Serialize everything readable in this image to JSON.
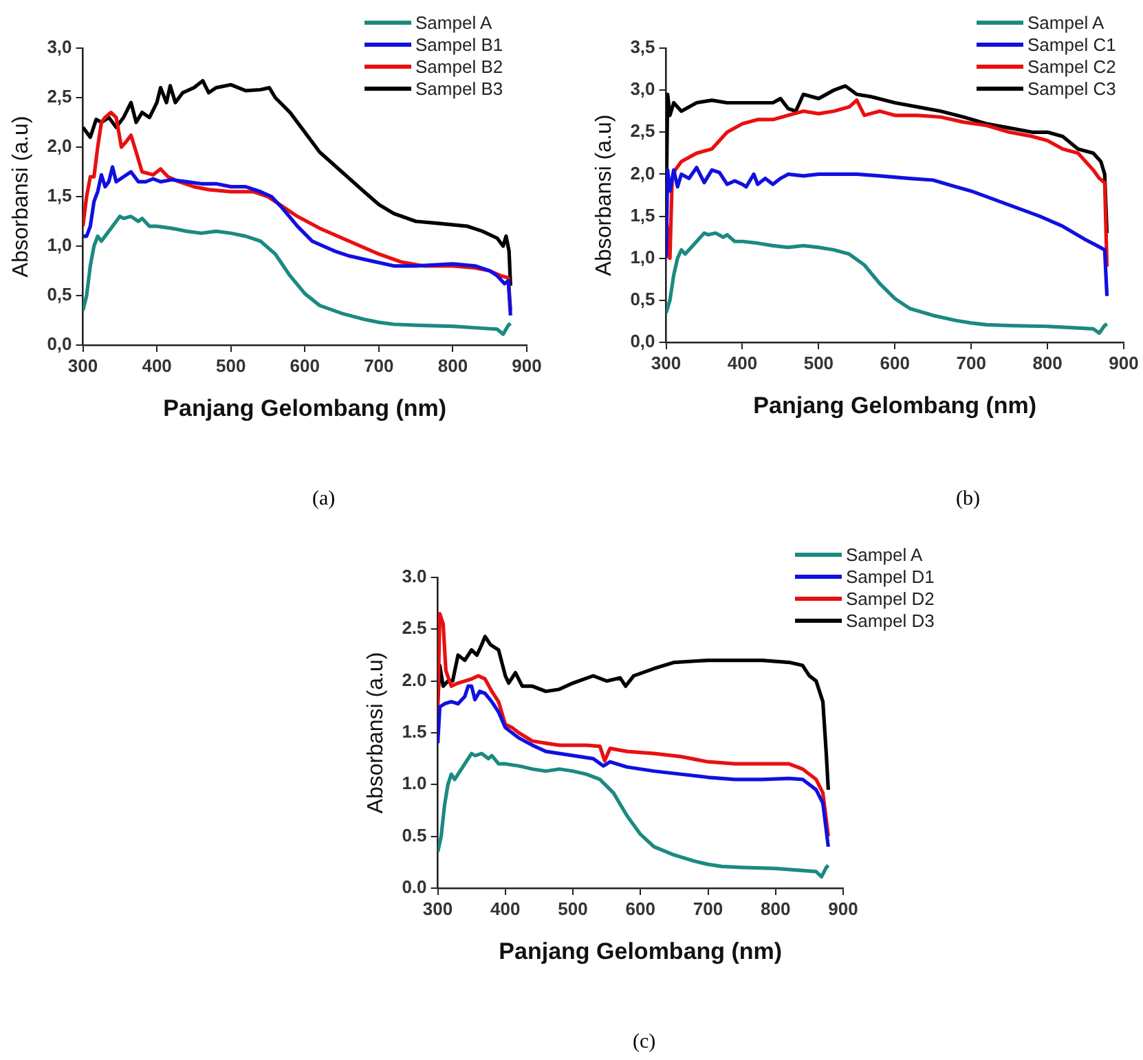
{
  "chart_data": [
    {
      "type": "line",
      "xlabel": "Panjang Gelombang (nm)",
      "ylabel": "Absorbansi (a.u)",
      "annotations": [
        "(a)"
      ],
      "legend": "top right",
      "grid": false,
      "marker": "none",
      "line_style": "solid",
      "xlim": [
        300,
        900
      ],
      "xticks": [
        300,
        400,
        500,
        600,
        700,
        800,
        900
      ],
      "ylim": [
        0,
        3
      ],
      "yticks": [
        {
          "value": 0,
          "label": "0,0"
        },
        {
          "value": 0.5,
          "label": "0,5"
        },
        {
          "value": 1,
          "label": "1,0"
        },
        {
          "value": 1.5,
          "label": "1,5"
        },
        {
          "value": 2,
          "label": "2,0"
        },
        {
          "value": 2.5,
          "label": "2,5"
        },
        {
          "value": 3,
          "label": "3,0"
        }
      ],
      "series": [
        {
          "name": "Sampel A",
          "color": "#1b8a80",
          "x": [
            300,
            305,
            310,
            315,
            320,
            325,
            330,
            340,
            350,
            355,
            365,
            375,
            380,
            390,
            400,
            420,
            440,
            460,
            480,
            500,
            520,
            540,
            560,
            580,
            600,
            620,
            650,
            680,
            700,
            720,
            750,
            800,
            840,
            860,
            868,
            875,
            878
          ],
          "values": [
            0.35,
            0.5,
            0.8,
            1.0,
            1.1,
            1.05,
            1.1,
            1.2,
            1.3,
            1.28,
            1.3,
            1.25,
            1.28,
            1.2,
            1.2,
            1.18,
            1.15,
            1.13,
            1.15,
            1.13,
            1.1,
            1.05,
            0.92,
            0.7,
            0.52,
            0.4,
            0.32,
            0.26,
            0.23,
            0.21,
            0.2,
            0.19,
            0.17,
            0.16,
            0.11,
            0.2,
            0.22
          ]
        },
        {
          "name": "Sampel B1",
          "color": "#1010e0",
          "x": [
            300,
            305,
            310,
            315,
            320,
            325,
            330,
            335,
            340,
            345,
            355,
            365,
            375,
            385,
            395,
            405,
            420,
            440,
            460,
            480,
            500,
            520,
            540,
            555,
            570,
            590,
            610,
            640,
            660,
            690,
            720,
            750,
            800,
            830,
            850,
            860,
            870,
            875,
            878
          ],
          "values": [
            1.1,
            1.1,
            1.2,
            1.45,
            1.55,
            1.72,
            1.6,
            1.65,
            1.8,
            1.65,
            1.7,
            1.75,
            1.65,
            1.65,
            1.68,
            1.65,
            1.67,
            1.65,
            1.63,
            1.63,
            1.6,
            1.6,
            1.55,
            1.5,
            1.38,
            1.2,
            1.05,
            0.95,
            0.9,
            0.85,
            0.8,
            0.8,
            0.82,
            0.8,
            0.75,
            0.7,
            0.62,
            0.65,
            0.3
          ]
        },
        {
          "name": "Sampel B2",
          "color": "#e81010",
          "x": [
            300,
            305,
            310,
            315,
            320,
            325,
            330,
            338,
            345,
            352,
            358,
            365,
            372,
            380,
            395,
            405,
            415,
            430,
            450,
            470,
            500,
            530,
            550,
            570,
            590,
            620,
            660,
            700,
            730,
            760,
            800,
            830,
            850,
            865,
            875,
            878
          ],
          "values": [
            1.2,
            1.5,
            1.7,
            1.7,
            2.0,
            2.25,
            2.3,
            2.35,
            2.3,
            2.0,
            2.05,
            2.12,
            1.95,
            1.75,
            1.72,
            1.78,
            1.7,
            1.65,
            1.6,
            1.57,
            1.55,
            1.55,
            1.5,
            1.4,
            1.3,
            1.18,
            1.05,
            0.92,
            0.84,
            0.8,
            0.8,
            0.78,
            0.75,
            0.7,
            0.68,
            0.35
          ]
        },
        {
          "name": "Sampel B3",
          "color": "#000000",
          "x": [
            300,
            305,
            310,
            318,
            325,
            335,
            345,
            355,
            365,
            372,
            380,
            390,
            400,
            405,
            413,
            418,
            425,
            435,
            450,
            462,
            470,
            480,
            500,
            520,
            540,
            552,
            560,
            580,
            600,
            620,
            650,
            680,
            700,
            720,
            750,
            780,
            820,
            840,
            860,
            868,
            872,
            876,
            878
          ],
          "values": [
            2.2,
            2.15,
            2.1,
            2.28,
            2.25,
            2.3,
            2.2,
            2.3,
            2.45,
            2.25,
            2.35,
            2.3,
            2.45,
            2.6,
            2.45,
            2.62,
            2.45,
            2.55,
            2.6,
            2.67,
            2.55,
            2.6,
            2.63,
            2.57,
            2.58,
            2.6,
            2.5,
            2.35,
            2.15,
            1.95,
            1.75,
            1.55,
            1.42,
            1.33,
            1.25,
            1.23,
            1.2,
            1.15,
            1.08,
            1.0,
            1.1,
            0.95,
            0.6
          ]
        }
      ]
    },
    {
      "type": "line",
      "xlabel": "Panjang Gelombang (nm)",
      "ylabel": "Absorbansi (a.u)",
      "annotations": [
        "(b)"
      ],
      "legend": "top right",
      "grid": false,
      "marker": "none",
      "line_style": "solid",
      "xlim": [
        300,
        900
      ],
      "xticks": [
        300,
        400,
        500,
        600,
        700,
        800,
        900
      ],
      "ylim": [
        0,
        3.5
      ],
      "yticks": [
        {
          "value": 0,
          "label": "0,0"
        },
        {
          "value": 0.5,
          "label": "0,5"
        },
        {
          "value": 1,
          "label": "1,0"
        },
        {
          "value": 1.5,
          "label": "1,5"
        },
        {
          "value": 2,
          "label": "2,0"
        },
        {
          "value": 2.5,
          "label": "2,5"
        },
        {
          "value": 3,
          "label": "3,0"
        },
        {
          "value": 3.5,
          "label": "3,5"
        }
      ],
      "series": [
        {
          "name": "Sampel A",
          "color": "#1b8a80",
          "x": [
            300,
            305,
            310,
            315,
            320,
            325,
            330,
            340,
            350,
            355,
            365,
            375,
            380,
            390,
            400,
            420,
            440,
            460,
            480,
            500,
            520,
            540,
            560,
            580,
            600,
            620,
            650,
            680,
            700,
            720,
            750,
            800,
            840,
            860,
            868,
            875,
            878
          ],
          "values": [
            0.35,
            0.5,
            0.8,
            1.0,
            1.1,
            1.05,
            1.1,
            1.2,
            1.3,
            1.28,
            1.3,
            1.25,
            1.28,
            1.2,
            1.2,
            1.18,
            1.15,
            1.13,
            1.15,
            1.13,
            1.1,
            1.05,
            0.92,
            0.7,
            0.52,
            0.4,
            0.32,
            0.26,
            0.23,
            0.21,
            0.2,
            0.19,
            0.17,
            0.16,
            0.11,
            0.2,
            0.22
          ]
        },
        {
          "name": "Sampel C1",
          "color": "#1010e0",
          "x": [
            300,
            302,
            305,
            310,
            315,
            320,
            330,
            340,
            350,
            360,
            370,
            380,
            390,
            400,
            405,
            415,
            420,
            430,
            440,
            450,
            460,
            480,
            500,
            520,
            550,
            580,
            620,
            650,
            680,
            700,
            730,
            760,
            790,
            820,
            850,
            865,
            875,
            878
          ],
          "values": [
            1.0,
            2.05,
            1.8,
            2.05,
            1.85,
            2.0,
            1.95,
            2.08,
            1.9,
            2.05,
            2.02,
            1.88,
            1.92,
            1.88,
            1.85,
            2.0,
            1.88,
            1.95,
            1.88,
            1.95,
            2.0,
            1.98,
            2.0,
            2.0,
            2.0,
            1.98,
            1.95,
            1.93,
            1.85,
            1.8,
            1.7,
            1.6,
            1.5,
            1.38,
            1.22,
            1.15,
            1.1,
            0.55
          ]
        },
        {
          "name": "Sampel C2",
          "color": "#e81010",
          "x": [
            300,
            305,
            308,
            312,
            320,
            340,
            360,
            380,
            400,
            420,
            440,
            460,
            480,
            500,
            520,
            540,
            550,
            560,
            580,
            600,
            630,
            660,
            690,
            720,
            750,
            780,
            800,
            820,
            840,
            860,
            868,
            875,
            878
          ],
          "values": [
            1.5,
            1.0,
            1.95,
            2.05,
            2.15,
            2.25,
            2.3,
            2.5,
            2.6,
            2.65,
            2.65,
            2.7,
            2.75,
            2.72,
            2.75,
            2.8,
            2.88,
            2.7,
            2.75,
            2.7,
            2.7,
            2.68,
            2.62,
            2.58,
            2.5,
            2.45,
            2.4,
            2.3,
            2.25,
            2.05,
            1.95,
            1.9,
            0.9
          ]
        },
        {
          "name": "Sampel C3",
          "color": "#000000",
          "x": [
            300,
            302,
            305,
            310,
            320,
            340,
            360,
            380,
            400,
            420,
            440,
            450,
            460,
            470,
            480,
            500,
            520,
            535,
            550,
            570,
            600,
            630,
            660,
            690,
            720,
            750,
            780,
            800,
            820,
            840,
            860,
            870,
            875,
            878
          ],
          "values": [
            1.5,
            2.95,
            2.7,
            2.85,
            2.75,
            2.85,
            2.88,
            2.85,
            2.85,
            2.85,
            2.85,
            2.9,
            2.78,
            2.75,
            2.95,
            2.9,
            3.0,
            3.05,
            2.95,
            2.92,
            2.85,
            2.8,
            2.75,
            2.68,
            2.6,
            2.55,
            2.5,
            2.5,
            2.45,
            2.3,
            2.25,
            2.15,
            2.0,
            1.3
          ]
        }
      ]
    },
    {
      "type": "line",
      "xlabel": "Panjang Gelombang (nm)",
      "ylabel": "Absorbansi (a.u)",
      "annotations": [
        "(c)"
      ],
      "legend": "top right",
      "grid": false,
      "marker": "none",
      "line_style": "solid",
      "xlim": [
        300,
        900
      ],
      "xticks": [
        300,
        400,
        500,
        600,
        700,
        800,
        900
      ],
      "ylim": [
        0,
        3
      ],
      "yticks": [
        {
          "value": 0,
          "label": "0.0"
        },
        {
          "value": 0.5,
          "label": "0.5"
        },
        {
          "value": 1,
          "label": "1.0"
        },
        {
          "value": 1.5,
          "label": "1.5"
        },
        {
          "value": 2,
          "label": "2.0"
        },
        {
          "value": 2.5,
          "label": "2.5"
        },
        {
          "value": 3,
          "label": "3.0"
        }
      ],
      "series": [
        {
          "name": "Sampel A",
          "color": "#1b8a80",
          "x": [
            300,
            305,
            310,
            315,
            320,
            325,
            330,
            340,
            350,
            355,
            365,
            375,
            380,
            390,
            400,
            420,
            440,
            460,
            480,
            500,
            520,
            540,
            560,
            580,
            600,
            620,
            650,
            680,
            700,
            720,
            750,
            800,
            840,
            860,
            868,
            875,
            878
          ],
          "values": [
            0.35,
            0.5,
            0.8,
            1.0,
            1.1,
            1.05,
            1.1,
            1.2,
            1.3,
            1.28,
            1.3,
            1.25,
            1.28,
            1.2,
            1.2,
            1.18,
            1.15,
            1.13,
            1.15,
            1.13,
            1.1,
            1.05,
            0.92,
            0.7,
            0.52,
            0.4,
            0.32,
            0.26,
            0.23,
            0.21,
            0.2,
            0.19,
            0.17,
            0.16,
            0.11,
            0.2,
            0.22
          ]
        },
        {
          "name": "Sampel D1",
          "color": "#1010e0",
          "x": [
            300,
            303,
            310,
            320,
            330,
            340,
            345,
            350,
            355,
            362,
            370,
            380,
            390,
            400,
            410,
            420,
            440,
            460,
            480,
            500,
            530,
            545,
            555,
            580,
            620,
            660,
            700,
            740,
            780,
            820,
            840,
            860,
            870,
            878
          ],
          "values": [
            1.4,
            1.75,
            1.78,
            1.8,
            1.78,
            1.85,
            1.95,
            1.95,
            1.82,
            1.9,
            1.88,
            1.8,
            1.7,
            1.55,
            1.5,
            1.45,
            1.38,
            1.32,
            1.3,
            1.28,
            1.25,
            1.18,
            1.22,
            1.17,
            1.13,
            1.1,
            1.07,
            1.05,
            1.05,
            1.06,
            1.05,
            0.95,
            0.82,
            0.4
          ]
        },
        {
          "name": "Sampel D2",
          "color": "#e81010",
          "x": [
            300,
            303,
            308,
            312,
            320,
            330,
            340,
            350,
            360,
            370,
            380,
            390,
            400,
            410,
            420,
            440,
            460,
            480,
            520,
            540,
            547,
            555,
            580,
            620,
            660,
            700,
            740,
            780,
            820,
            840,
            860,
            870,
            878
          ],
          "values": [
            1.7,
            2.65,
            2.55,
            2.1,
            1.95,
            1.98,
            2.0,
            2.02,
            2.05,
            2.02,
            1.9,
            1.8,
            1.58,
            1.55,
            1.5,
            1.42,
            1.4,
            1.38,
            1.38,
            1.37,
            1.23,
            1.35,
            1.32,
            1.3,
            1.27,
            1.22,
            1.2,
            1.2,
            1.2,
            1.15,
            1.05,
            0.92,
            0.5
          ]
        },
        {
          "name": "Sampel D3",
          "color": "#000000",
          "x": [
            300,
            303,
            308,
            315,
            322,
            330,
            340,
            350,
            358,
            365,
            370,
            378,
            390,
            400,
            405,
            415,
            425,
            440,
            460,
            480,
            500,
            530,
            550,
            570,
            578,
            590,
            620,
            650,
            700,
            750,
            780,
            820,
            840,
            850,
            860,
            870,
            875,
            878
          ],
          "values": [
            1.8,
            2.15,
            1.95,
            2.0,
            2.0,
            2.25,
            2.2,
            2.3,
            2.25,
            2.35,
            2.43,
            2.35,
            2.3,
            2.05,
            1.98,
            2.08,
            1.95,
            1.95,
            1.9,
            1.92,
            1.98,
            2.05,
            2.0,
            2.03,
            1.95,
            2.05,
            2.12,
            2.18,
            2.2,
            2.2,
            2.2,
            2.18,
            2.15,
            2.05,
            2.0,
            1.8,
            1.3,
            0.95
          ]
        }
      ]
    }
  ]
}
